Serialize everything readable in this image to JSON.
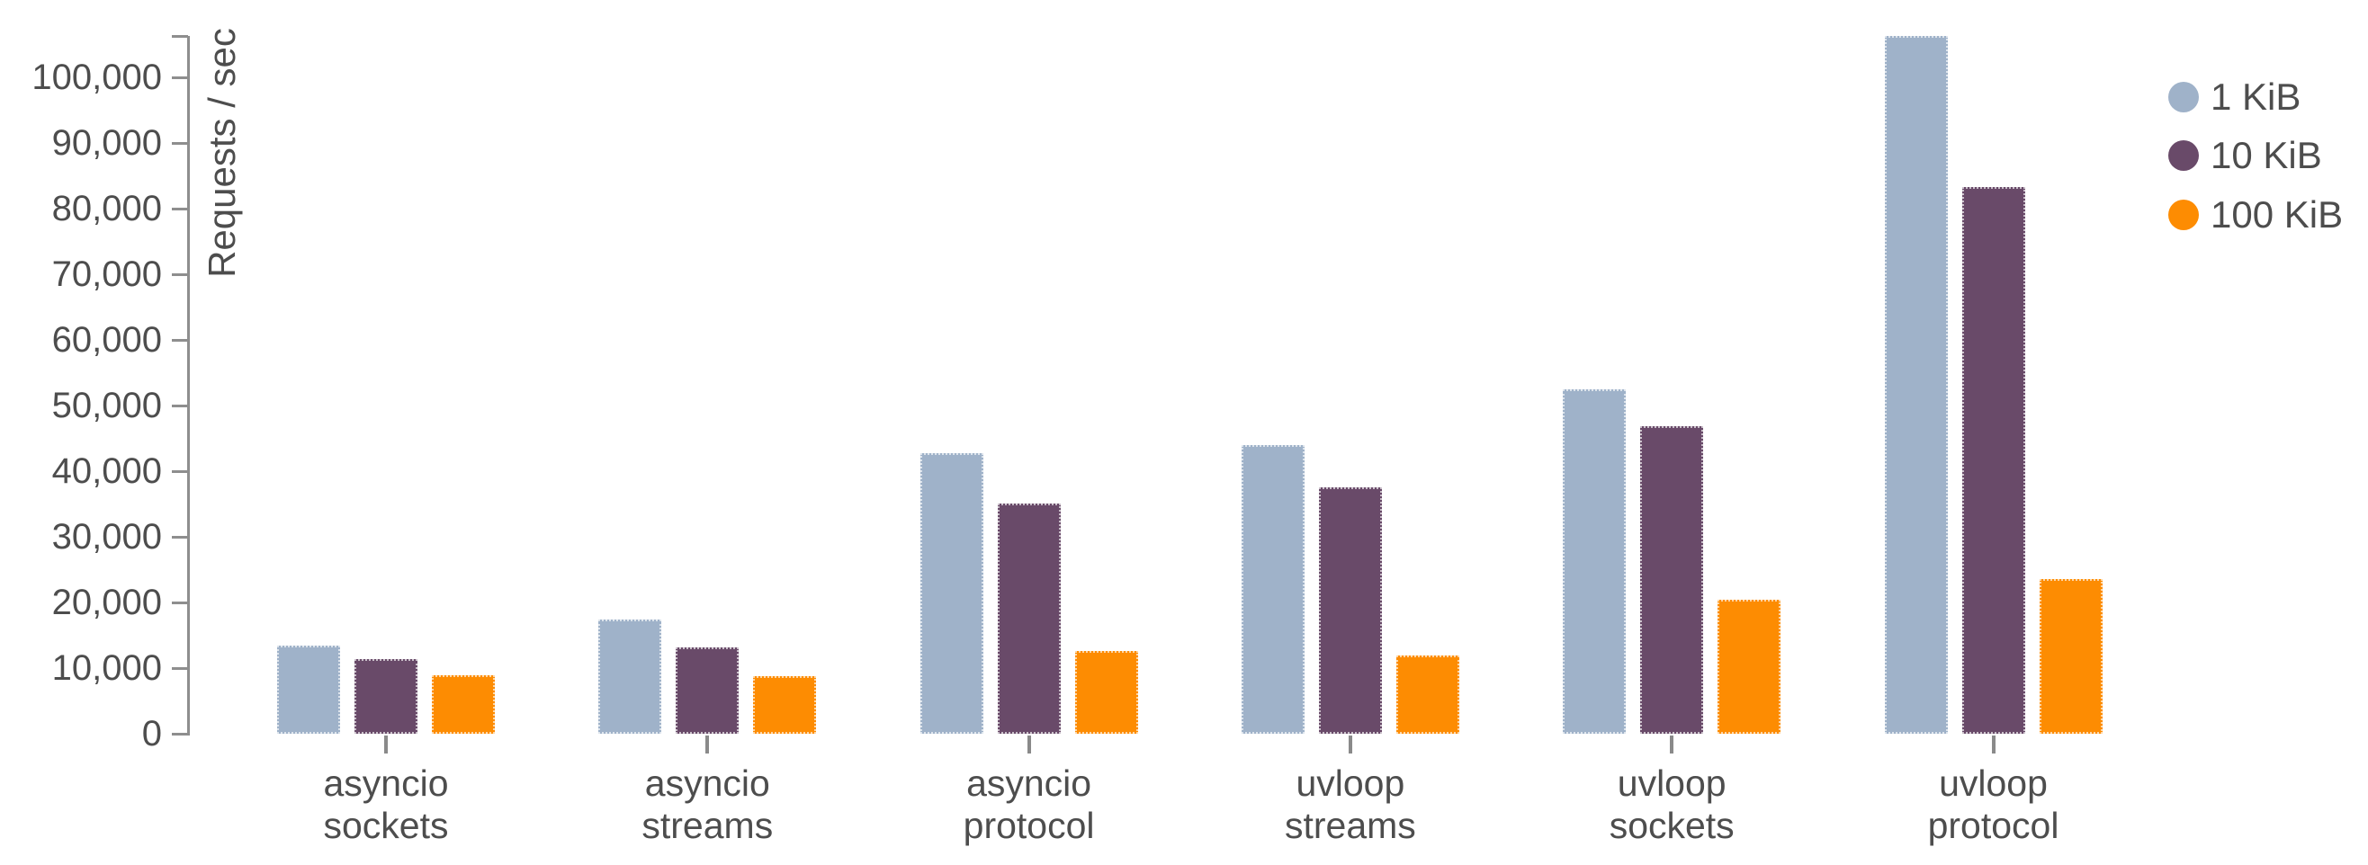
{
  "chart_data": {
    "type": "bar",
    "title": "",
    "ylabel": "Requests / sec",
    "xlabel": "",
    "grid": false,
    "background": "#ffffff",
    "legend_position": "top-right",
    "categories": [
      [
        "asyncio",
        "sockets"
      ],
      [
        "asyncio",
        "streams"
      ],
      [
        "asyncio",
        "protocol"
      ],
      [
        "uvloop",
        "streams"
      ],
      [
        "uvloop",
        "sockets"
      ],
      [
        "uvloop",
        "protocol"
      ]
    ],
    "series": [
      {
        "name": "1 KiB",
        "color": "#9fb2c9",
        "values": [
          13400,
          17400,
          42800,
          44000,
          52400,
          106300
        ]
      },
      {
        "name": "10 KiB",
        "color": "#694a69",
        "values": [
          11400,
          13200,
          35000,
          37600,
          46800,
          83300
        ]
      },
      {
        "name": "100 KiB",
        "color": "#fd8c02",
        "values": [
          8900,
          8800,
          12600,
          11900,
          20400,
          23500
        ]
      }
    ],
    "y_ticks": [
      0,
      10000,
      20000,
      30000,
      40000,
      50000,
      60000,
      70000,
      80000,
      90000,
      100000
    ],
    "y_tick_labels": [
      "0",
      "10,000",
      "20,000",
      "30,000",
      "40,000",
      "50,000",
      "60,000",
      "70,000",
      "80,000",
      "90,000",
      "100,000"
    ],
    "ylim": [
      0,
      106300
    ]
  },
  "colors": {
    "axis": "#8e8e8e",
    "text": "#4d4d4d",
    "background": "#ffffff"
  }
}
